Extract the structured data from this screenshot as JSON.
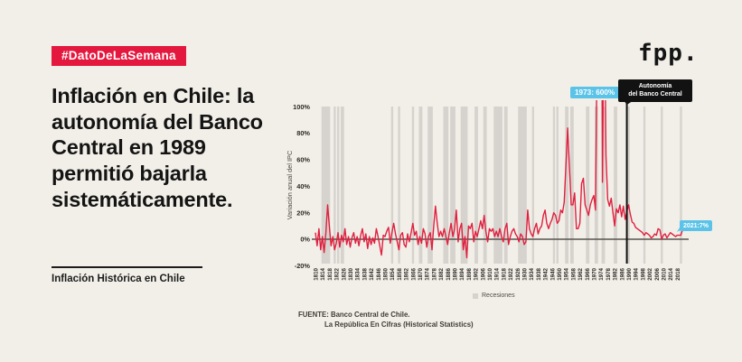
{
  "colors": {
    "background": "#F2EFE8",
    "accent_red": "#E4173E",
    "line_red": "#E0203F",
    "light_blue": "#5BC3E8",
    "black": "#121212",
    "recession_gray": "#D6D3CE",
    "axis_gray": "#58534E",
    "tick_text": "#2E2B28"
  },
  "badge": {
    "label": "#DatoDeLaSemana"
  },
  "logo": {
    "text": "fpp."
  },
  "headline": {
    "text": "Inflación en Chile: la autonomía del Banco Central en 1989 permitió bajarla sistemáticamente."
  },
  "subtitle": {
    "text": "Inflación Histórica en Chile"
  },
  "annotations": {
    "peak": {
      "label": "1973: 600%"
    },
    "autonomy": {
      "line1": "Autonomía",
      "line2": "del Banco Central",
      "year": 1989
    },
    "latest": {
      "label": "2021:7%"
    }
  },
  "legend": {
    "recessions": "Recesiones"
  },
  "source": {
    "line1": "FUENTE: Banco Central de Chile.",
    "line2": "La República En Cifras (Historical Statistics)"
  },
  "chart_data": {
    "type": "line",
    "title": "Inflación Histórica en Chile",
    "ylabel": "Variación anual del IPC",
    "xlabel": "",
    "ylim": [
      -20,
      100
    ],
    "yticks": [
      100,
      80,
      60,
      40,
      20,
      0,
      -20
    ],
    "ytick_suffix": "%",
    "x_start": 1810,
    "x_end": 2021,
    "xtick_step": 4,
    "xtick_last": 2018,
    "grid": false,
    "values_clipped_above": 100,
    "values": [
      5,
      -5,
      8,
      -8,
      2,
      -10,
      5,
      26,
      10,
      -5,
      2,
      -8,
      -3,
      5,
      -6,
      3,
      -2,
      8,
      -4,
      2,
      -6,
      1,
      5,
      -3,
      2,
      -5,
      3,
      8,
      -2,
      4,
      -7,
      2,
      -4,
      1,
      -3,
      8,
      2,
      -5,
      -12,
      3,
      2,
      6,
      9,
      -3,
      5,
      12,
      4,
      -2,
      -8,
      3,
      5,
      -4,
      -6,
      4,
      -2,
      5,
      12,
      3,
      6,
      -4,
      2,
      -3,
      8,
      4,
      -6,
      2,
      5,
      -8,
      10,
      25,
      12,
      2,
      6,
      2,
      8,
      2,
      -4,
      5,
      12,
      2,
      8,
      22,
      -2,
      8,
      12,
      -8,
      2,
      -14,
      10,
      8,
      12,
      -2,
      6,
      2,
      8,
      14,
      8,
      18,
      6,
      -2,
      8,
      6,
      8,
      2,
      6,
      2,
      8,
      2,
      -2,
      8,
      12,
      -4,
      2,
      6,
      8,
      4,
      2,
      -2,
      4,
      2,
      -4,
      -2,
      22,
      8,
      4,
      2,
      8,
      12,
      4,
      8,
      10,
      18,
      22,
      12,
      8,
      12,
      15,
      20,
      18,
      12,
      14,
      22,
      20,
      28,
      56,
      84,
      56,
      26,
      26,
      35,
      8,
      8,
      12,
      42,
      46,
      26,
      22,
      18,
      26,
      30,
      33,
      22,
      163,
      600,
      376,
      43,
      199,
      63,
      30,
      25,
      31,
      20,
      10,
      23,
      20,
      26,
      17,
      25,
      15,
      21,
      26,
      19,
      13,
      12,
      9,
      8,
      7,
      6,
      5,
      3,
      5,
      4,
      3,
      1,
      2,
      4,
      3,
      8,
      7,
      0,
      3,
      4,
      1,
      3,
      5,
      4,
      3,
      2,
      3,
      3,
      3,
      7
    ],
    "recessions": [
      [
        1814,
        1818
      ],
      [
        1821,
        1821
      ],
      [
        1823,
        1823
      ],
      [
        1825,
        1826
      ],
      [
        1854,
        1854
      ],
      [
        1858,
        1858
      ],
      [
        1866,
        1866
      ],
      [
        1870,
        1871
      ],
      [
        1875,
        1877
      ],
      [
        1884,
        1886
      ],
      [
        1888,
        1890
      ],
      [
        1894,
        1897
      ],
      [
        1902,
        1903
      ],
      [
        1907,
        1908
      ],
      [
        1913,
        1917
      ],
      [
        1919,
        1920
      ],
      [
        1927,
        1931
      ],
      [
        1935,
        1935
      ],
      [
        1947,
        1947
      ],
      [
        1949,
        1949
      ],
      [
        1954,
        1955
      ],
      [
        1957,
        1958
      ],
      [
        1966,
        1967
      ],
      [
        1971,
        1972
      ],
      [
        1975,
        1976
      ],
      [
        1982,
        1983
      ],
      [
        1990,
        1990
      ],
      [
        1999,
        1999
      ],
      [
        2009,
        2009
      ],
      [
        2020,
        2020
      ]
    ],
    "annotated_points": [
      {
        "year": 1973,
        "value_pct": 600
      },
      {
        "year": 2021,
        "value_pct": 7
      }
    ]
  }
}
